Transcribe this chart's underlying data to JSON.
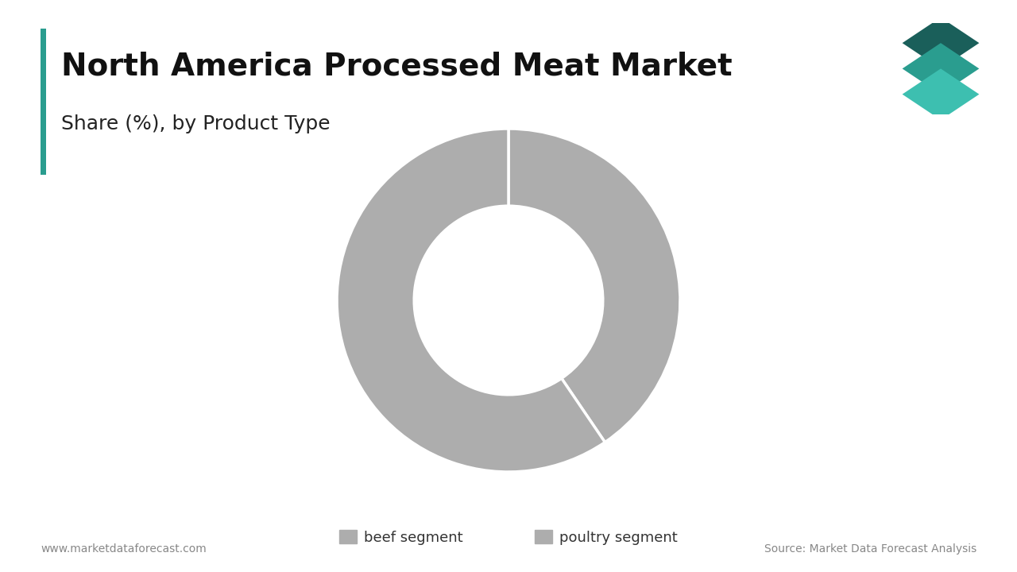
{
  "title": "North America Processed Meat Market",
  "subtitle": "Share (%), by Product Type",
  "segments": [
    "beef segment",
    "poultry segment"
  ],
  "values": [
    40.5,
    59.5
  ],
  "donut_color": "#adadad",
  "background_color": "#ffffff",
  "accent_color": "#2a9d8f",
  "title_fontsize": 28,
  "subtitle_fontsize": 18,
  "legend_fontsize": 13,
  "footer_left": "www.marketdataforecast.com",
  "footer_right": "Source: Market Data Forecast Analysis",
  "logo_colors": [
    "#1a5f5a",
    "#2a9d8f",
    "#3dbfb0"
  ]
}
